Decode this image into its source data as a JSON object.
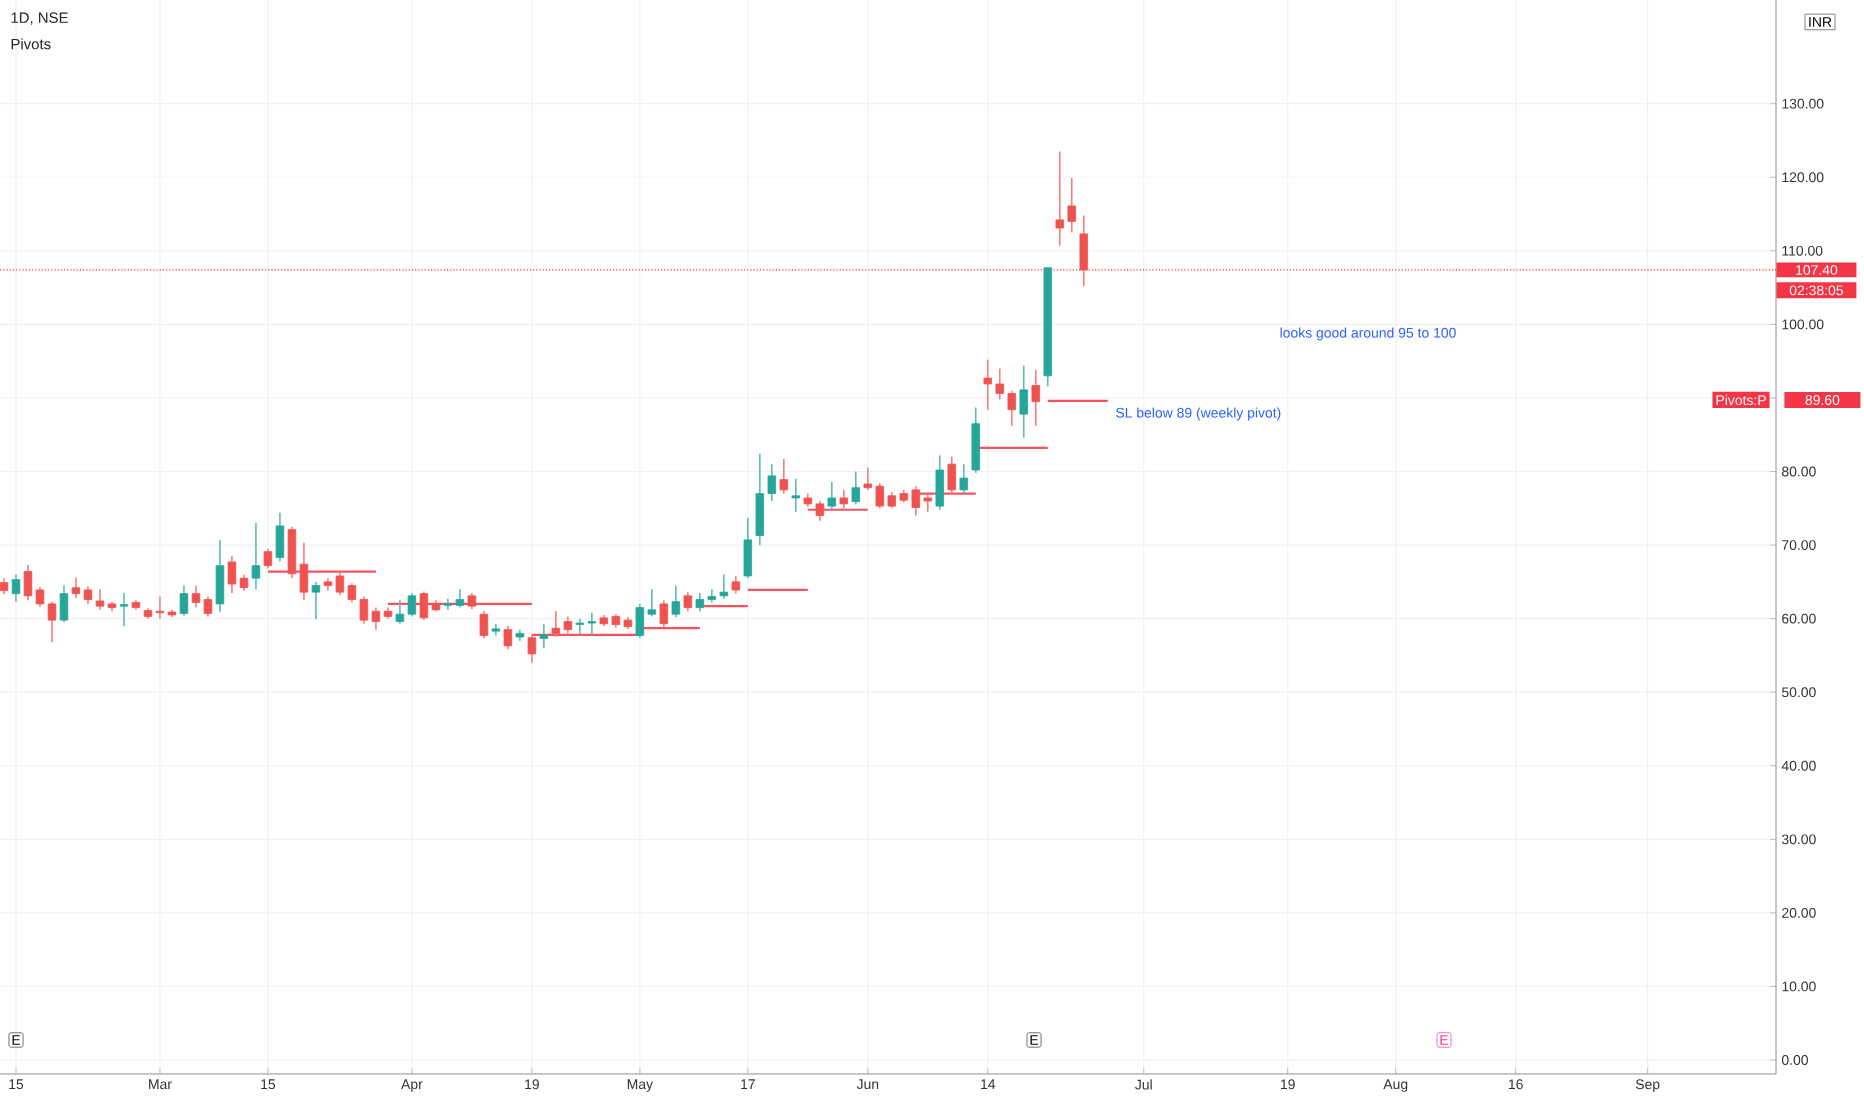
{
  "chart_data": {
    "type": "candlestick",
    "title": "1D, NSE",
    "subtitle": "Pivots",
    "categories": [
      null,
      "15",
      null,
      null,
      null,
      null,
      null,
      null,
      null,
      null,
      null,
      null,
      null,
      "Mar",
      null,
      null,
      null,
      null,
      null,
      null,
      null,
      null,
      "15",
      null,
      null,
      null,
      null,
      null,
      null,
      null,
      null,
      null,
      null,
      null,
      "Apr",
      null,
      null,
      null,
      null,
      null,
      null,
      null,
      null,
      null,
      "19",
      null,
      null,
      null,
      null,
      null,
      null,
      null,
      null,
      "May",
      null,
      null,
      null,
      null,
      null,
      null,
      null,
      null,
      "17",
      null,
      null,
      null,
      null,
      null,
      null,
      null,
      null,
      null,
      "Jun",
      null,
      null,
      null,
      null,
      null,
      null,
      null,
      null,
      null,
      "14",
      null,
      null,
      null,
      null,
      null,
      null,
      null,
      null,
      null,
      null,
      null,
      null,
      "Jul",
      null,
      null,
      null,
      null,
      null,
      null,
      null,
      null,
      null,
      null,
      null,
      "19",
      null,
      null,
      null,
      null,
      null,
      null,
      null,
      null,
      "Aug",
      null,
      null,
      null,
      null,
      null,
      null,
      null,
      null,
      null,
      "16",
      null,
      null,
      null,
      null,
      null,
      null,
      null,
      null,
      null,
      null,
      "Sep",
      null,
      null,
      null,
      null,
      null,
      null,
      null,
      null,
      null,
      null
    ],
    "ohlc": [
      [
        64.9,
        65.5,
        63.3,
        63.8
      ],
      [
        63.4,
        66.0,
        62.3,
        65.3
      ],
      [
        66.4,
        67.3,
        62.5,
        63.1
      ],
      [
        63.9,
        64.3,
        61.6,
        62.0
      ],
      [
        62.0,
        62.3,
        56.8,
        59.8
      ],
      [
        59.8,
        64.5,
        59.5,
        63.4
      ],
      [
        64.2,
        65.6,
        62.8,
        63.4
      ],
      [
        63.9,
        64.4,
        62.0,
        62.6
      ],
      [
        62.4,
        64.0,
        61.2,
        61.7
      ],
      [
        62.0,
        62.3,
        61.0,
        61.5
      ],
      [
        61.7,
        63.5,
        59.0,
        61.9
      ],
      [
        62.2,
        62.5,
        61.2,
        61.5
      ],
      [
        61.1,
        61.4,
        60.0,
        60.3
      ],
      [
        61.0,
        63.0,
        60.0,
        60.8
      ],
      [
        60.9,
        61.2,
        60.2,
        60.5
      ],
      [
        60.7,
        64.5,
        60.4,
        63.4
      ],
      [
        63.4,
        64.5,
        61.5,
        62.2
      ],
      [
        62.6,
        63.0,
        60.3,
        60.7
      ],
      [
        62.0,
        70.7,
        60.9,
        67.2
      ],
      [
        67.7,
        68.5,
        63.5,
        64.7
      ],
      [
        65.5,
        66.0,
        63.8,
        64.2
      ],
      [
        65.5,
        73.0,
        64.0,
        67.2
      ],
      [
        69.1,
        69.5,
        66.8,
        67.2
      ],
      [
        68.3,
        74.4,
        67.8,
        72.6
      ],
      [
        72.1,
        72.5,
        65.5,
        66.1
      ],
      [
        67.4,
        70.3,
        62.5,
        63.6
      ],
      [
        63.6,
        65.0,
        59.9,
        64.5
      ],
      [
        65.0,
        65.5,
        63.8,
        64.5
      ],
      [
        65.8,
        66.3,
        63.2,
        63.6
      ],
      [
        64.5,
        64.8,
        62.2,
        62.6
      ],
      [
        62.6,
        63.0,
        59.3,
        59.8
      ],
      [
        61.0,
        61.5,
        58.5,
        59.6
      ],
      [
        61.0,
        61.5,
        60.0,
        60.3
      ],
      [
        59.6,
        62.5,
        59.3,
        60.6
      ],
      [
        60.6,
        63.5,
        60.3,
        63.1
      ],
      [
        63.4,
        63.7,
        59.8,
        60.1
      ],
      [
        62.0,
        62.5,
        61.0,
        61.2
      ],
      [
        61.8,
        62.7,
        61.2,
        62.0
      ],
      [
        61.8,
        64.0,
        61.5,
        62.6
      ],
      [
        63.1,
        63.5,
        61.3,
        61.7
      ],
      [
        60.6,
        61.0,
        57.3,
        57.7
      ],
      [
        58.3,
        59.3,
        57.7,
        58.6
      ],
      [
        58.5,
        59.0,
        55.8,
        56.3
      ],
      [
        57.5,
        58.5,
        57.0,
        58.0
      ],
      [
        57.4,
        57.8,
        54.0,
        55.2
      ],
      [
        57.3,
        59.3,
        56.0,
        57.8
      ],
      [
        58.7,
        61.0,
        57.5,
        58.0
      ],
      [
        59.6,
        60.3,
        58.0,
        58.5
      ],
      [
        59.2,
        60.0,
        57.8,
        59.4
      ],
      [
        59.4,
        60.8,
        57.8,
        59.6
      ],
      [
        60.1,
        60.5,
        59.0,
        59.3
      ],
      [
        60.3,
        60.6,
        58.8,
        59.2
      ],
      [
        59.8,
        60.2,
        58.6,
        58.9
      ],
      [
        57.7,
        62.0,
        57.4,
        61.5
      ],
      [
        60.6,
        64.0,
        60.3,
        61.2
      ],
      [
        62.0,
        62.5,
        58.8,
        59.3
      ],
      [
        60.6,
        64.5,
        60.2,
        62.3
      ],
      [
        63.1,
        63.6,
        61.0,
        61.5
      ],
      [
        61.5,
        63.5,
        61.0,
        62.6
      ],
      [
        62.6,
        64.0,
        62.2,
        63.0
      ],
      [
        63.1,
        66.0,
        62.7,
        63.6
      ],
      [
        65.0,
        65.8,
        63.4,
        63.9
      ],
      [
        65.8,
        73.7,
        65.5,
        70.7
      ],
      [
        71.3,
        82.4,
        70.0,
        77.0
      ],
      [
        77.0,
        81.0,
        76.0,
        79.4
      ],
      [
        78.9,
        81.7,
        77.0,
        77.5
      ],
      [
        76.4,
        79.0,
        74.5,
        76.7
      ],
      [
        76.4,
        77.0,
        75.2,
        75.6
      ],
      [
        75.6,
        76.0,
        73.3,
        74.0
      ],
      [
        75.3,
        78.6,
        74.8,
        76.4
      ],
      [
        76.4,
        77.5,
        75.0,
        75.6
      ],
      [
        75.9,
        80.0,
        75.5,
        77.8
      ],
      [
        78.3,
        80.5,
        77.5,
        77.8
      ],
      [
        78.0,
        78.4,
        75.0,
        75.3
      ],
      [
        76.7,
        77.2,
        75.0,
        75.3
      ],
      [
        77.0,
        77.5,
        75.8,
        76.1
      ],
      [
        77.5,
        78.0,
        74.0,
        75.1
      ],
      [
        76.4,
        76.8,
        74.5,
        76.0
      ],
      [
        75.3,
        82.2,
        74.8,
        80.2
      ],
      [
        81.0,
        82.0,
        77.0,
        77.5
      ],
      [
        77.5,
        81.0,
        77.0,
        79.1
      ],
      [
        80.2,
        88.7,
        79.8,
        86.5
      ],
      [
        92.7,
        95.2,
        88.4,
        91.9
      ],
      [
        91.9,
        94.0,
        89.8,
        90.6
      ],
      [
        90.6,
        91.0,
        86.2,
        88.4
      ],
      [
        87.8,
        94.4,
        84.6,
        91.1
      ],
      [
        91.7,
        93.8,
        86.2,
        89.5
      ],
      [
        93.0,
        107.7,
        91.6,
        107.7
      ],
      [
        114.2,
        123.5,
        110.7,
        113.1
      ],
      [
        116.1,
        119.9,
        112.5,
        114.0
      ],
      [
        112.3,
        114.8,
        105.2,
        107.4
      ],
      null,
      null,
      null,
      null,
      null,
      null,
      null,
      null,
      null,
      null,
      null,
      null,
      null,
      null,
      null,
      null,
      null,
      null,
      null,
      null,
      null,
      null,
      null,
      null,
      null,
      null,
      null,
      null,
      null,
      null,
      null,
      null,
      null,
      null,
      null,
      null,
      null,
      null,
      null,
      null,
      null,
      null,
      null,
      null,
      null,
      null,
      null,
      null,
      null,
      null,
      null,
      null,
      null,
      null,
      null,
      null,
      null
    ],
    "series": [
      {
        "type": "line",
        "color": "#f7525f",
        "values": [
          null,
          null,
          null,
          null,
          null,
          null,
          null,
          null,
          null,
          null,
          null,
          null,
          null,
          null,
          null,
          null,
          null,
          null,
          null,
          null,
          null,
          null,
          66.4,
          66.4,
          66.4,
          66.4,
          66.4,
          66.4,
          66.4,
          66.4,
          66.4,
          66.4,
          null,
          null,
          null,
          null,
          null,
          null,
          null,
          null,
          null,
          null,
          null,
          null,
          57.8,
          57.8,
          57.8,
          57.8,
          57.8,
          57.8,
          57.8,
          57.8,
          57.8,
          57.8,
          null,
          null,
          null,
          null,
          61.7,
          61.7,
          61.7,
          61.7,
          61.7,
          null,
          null,
          null,
          null,
          74.8,
          74.8,
          74.8,
          74.8,
          74.8,
          74.8,
          null,
          null,
          null,
          null,
          null,
          null,
          null,
          null,
          83.2,
          83.2,
          83.2,
          83.2,
          83.2,
          83.2,
          83.2,
          null,
          null,
          null,
          null,
          null,
          null,
          null,
          null,
          null,
          null,
          null,
          null,
          null,
          null,
          null,
          null,
          null,
          null,
          null,
          null,
          null,
          null,
          null,
          null,
          null,
          null,
          null,
          null,
          null,
          null,
          null,
          null,
          null,
          null,
          null,
          null,
          null,
          null,
          null,
          null,
          null,
          null,
          null,
          null,
          null,
          null,
          null,
          null,
          null,
          null,
          null,
          null,
          null,
          null,
          null,
          null,
          null,
          null,
          null,
          null
        ]
      },
      {
        "type": "line",
        "color": "#f7525f",
        "values": [
          null,
          null,
          null,
          null,
          null,
          null,
          null,
          null,
          null,
          null,
          null,
          null,
          null,
          null,
          null,
          null,
          null,
          null,
          null,
          null,
          null,
          null,
          null,
          null,
          null,
          null,
          null,
          null,
          null,
          null,
          null,
          null,
          62.0,
          62.0,
          62.0,
          62.0,
          62.0,
          62.0,
          62.0,
          62.0,
          62.0,
          62.0,
          62.0,
          62.0,
          62.0,
          null,
          null,
          null,
          null,
          null,
          null,
          null,
          null,
          58.7,
          58.7,
          58.7,
          58.7,
          58.7,
          58.7,
          null,
          null,
          null,
          63.9,
          63.9,
          63.9,
          63.9,
          63.9,
          63.9,
          null,
          null,
          null,
          null,
          null,
          null,
          null,
          null,
          77.0,
          77.0,
          77.0,
          77.0,
          77.0,
          77.0,
          null,
          null,
          null,
          null,
          null,
          89.6,
          89.6,
          89.6,
          89.6,
          89.6,
          89.6,
          null,
          null,
          null,
          null,
          null,
          null,
          null,
          null,
          null,
          null,
          null,
          null,
          null,
          null,
          null,
          null,
          null,
          null,
          null,
          null,
          null,
          null,
          null,
          null,
          null,
          null,
          null,
          null,
          null,
          null,
          null,
          null,
          null,
          null,
          null,
          null,
          null,
          null,
          null,
          null,
          null,
          null,
          null,
          null,
          null,
          null,
          null,
          null,
          null,
          null,
          null,
          null,
          null,
          null,
          null
        ]
      }
    ],
    "ylim": [
      -1.9,
      144.1
    ],
    "yticks": [
      {
        "value": 0,
        "label": "0.00"
      },
      {
        "value": 10,
        "label": "10.00"
      },
      {
        "value": 20,
        "label": "20.00"
      },
      {
        "value": 30,
        "label": "30.00"
      },
      {
        "value": 40,
        "label": "40.00"
      },
      {
        "value": 50,
        "label": "50.00"
      },
      {
        "value": 60,
        "label": "60.00"
      },
      {
        "value": 70,
        "label": "70.00"
      },
      {
        "value": 80,
        "label": "80.00"
      },
      {
        "value": 90,
        "label": null
      },
      {
        "value": 100,
        "label": "100.00"
      },
      {
        "value": 110,
        "label": "110.00"
      },
      {
        "value": 120,
        "label": "120.00"
      },
      {
        "value": 130,
        "label": "130.00"
      }
    ],
    "grid": true,
    "ref_lines": [
      {
        "axis": "y",
        "value": 107.4,
        "label": "107.40",
        "color": "#f23645",
        "line_style": "dotted"
      }
    ],
    "annotations": [
      "looks good around 95 to 100",
      "SL below 89 (weekly pivot)",
      "Pivots:P",
      "89.60",
      "02:38:05",
      "INR",
      "E",
      "E",
      "E"
    ]
  }
}
